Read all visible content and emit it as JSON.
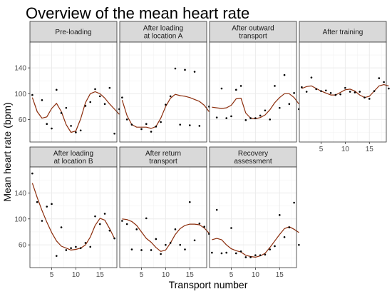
{
  "chart_data": {
    "type": "scatter",
    "title": "Overview of the mean heart rate",
    "xlabel": "Transport number",
    "ylabel": "Mean heart rate (bpm)",
    "xlim": [
      0.5,
      18.5
    ],
    "ylim": [
      25,
      180
    ],
    "x_ticks": [
      5,
      10,
      15
    ],
    "y_ticks": [
      60,
      100,
      140
    ],
    "grid": true,
    "colors": {
      "points": "#000000",
      "smooth_line": "#8b2c0b",
      "strip_bg": "#d9d9d9",
      "panel_border": "#333333",
      "grid": "#ebebeb"
    },
    "panels": [
      {
        "strip": [
          "Pre-loading"
        ],
        "points": [
          [
            1,
            98
          ],
          [
            3,
            90
          ],
          [
            4,
            53
          ],
          [
            5,
            46
          ],
          [
            6,
            106
          ],
          [
            7,
            70
          ],
          [
            8,
            78
          ],
          [
            9,
            50
          ],
          [
            10,
            40
          ],
          [
            11,
            43
          ],
          [
            12,
            81
          ],
          [
            13,
            87
          ],
          [
            14,
            107
          ],
          [
            15,
            96
          ],
          [
            16,
            84
          ],
          [
            17,
            109
          ],
          [
            18,
            38
          ],
          [
            19,
            76
          ]
        ],
        "smooth": [
          [
            1,
            94
          ],
          [
            2,
            72
          ],
          [
            3,
            62
          ],
          [
            4,
            64
          ],
          [
            5,
            77
          ],
          [
            6,
            85
          ],
          [
            7,
            72
          ],
          [
            8,
            52
          ],
          [
            9,
            40
          ],
          [
            10,
            42
          ],
          [
            11,
            61
          ],
          [
            12,
            86
          ],
          [
            13,
            100
          ],
          [
            14,
            103
          ],
          [
            15,
            100
          ],
          [
            16,
            93
          ],
          [
            17,
            84
          ],
          [
            18,
            76
          ],
          [
            19,
            68
          ]
        ]
      },
      {
        "strip": [
          "After loading",
          "at location A"
        ],
        "points": [
          [
            1,
            94
          ],
          [
            2,
            60
          ],
          [
            3,
            52
          ],
          [
            5,
            45
          ],
          [
            6,
            53
          ],
          [
            7,
            41
          ],
          [
            8,
            49
          ],
          [
            9,
            56
          ],
          [
            10,
            83
          ],
          [
            11,
            96
          ],
          [
            12,
            139
          ],
          [
            13,
            52
          ],
          [
            14,
            137
          ],
          [
            15,
            51
          ],
          [
            16,
            134
          ],
          [
            17,
            50
          ],
          [
            19,
            80
          ]
        ],
        "smooth": [
          [
            1,
            90
          ],
          [
            2,
            66
          ],
          [
            3,
            52
          ],
          [
            4,
            48
          ],
          [
            5,
            48
          ],
          [
            6,
            48
          ],
          [
            7,
            46
          ],
          [
            8,
            49
          ],
          [
            9,
            62
          ],
          [
            10,
            80
          ],
          [
            11,
            93
          ],
          [
            12,
            99
          ],
          [
            13,
            97
          ],
          [
            14,
            96
          ],
          [
            15,
            94
          ],
          [
            16,
            91
          ],
          [
            17,
            88
          ],
          [
            18,
            82
          ],
          [
            19,
            72
          ]
        ]
      },
      {
        "strip": [
          "After outward",
          "transport"
        ],
        "points": [
          [
            2,
            63
          ],
          [
            3,
            108
          ],
          [
            4,
            62
          ],
          [
            5,
            65
          ],
          [
            6,
            106
          ],
          [
            7,
            112
          ],
          [
            8,
            59
          ],
          [
            9,
            62
          ],
          [
            10,
            62
          ],
          [
            11,
            66
          ],
          [
            12,
            74
          ],
          [
            13,
            60
          ],
          [
            14,
            112
          ],
          [
            15,
            78
          ],
          [
            16,
            129
          ],
          [
            17,
            84
          ],
          [
            18,
            101
          ],
          [
            19,
            76
          ]
        ],
        "smooth": [
          [
            1,
            79
          ],
          [
            2,
            78
          ],
          [
            3,
            77
          ],
          [
            4,
            78
          ],
          [
            5,
            82
          ],
          [
            6,
            92
          ],
          [
            7,
            93
          ],
          [
            8,
            70
          ],
          [
            9,
            62
          ],
          [
            10,
            61
          ],
          [
            11,
            63
          ],
          [
            12,
            67
          ],
          [
            13,
            75
          ],
          [
            14,
            86
          ],
          [
            15,
            94
          ],
          [
            16,
            100
          ],
          [
            17,
            100
          ],
          [
            18,
            94
          ],
          [
            19,
            84
          ]
        ]
      },
      {
        "strip": [
          "After training"
        ],
        "points": [
          [
            1,
            110
          ],
          [
            2,
            103
          ],
          [
            3,
            125
          ],
          [
            4,
            107
          ],
          [
            5,
            104
          ],
          [
            6,
            105
          ],
          [
            7,
            101
          ],
          [
            8,
            98
          ],
          [
            9,
            99
          ],
          [
            10,
            109
          ],
          [
            11,
            103
          ],
          [
            12,
            102
          ],
          [
            13,
            103
          ],
          [
            14,
            94
          ],
          [
            15,
            92
          ],
          [
            16,
            104
          ],
          [
            17,
            124
          ],
          [
            18,
            118
          ],
          [
            19,
            108
          ]
        ],
        "smooth": [
          [
            1,
            108
          ],
          [
            2,
            111
          ],
          [
            3,
            112
          ],
          [
            4,
            108
          ],
          [
            5,
            104
          ],
          [
            6,
            101
          ],
          [
            7,
            98
          ],
          [
            8,
            98
          ],
          [
            9,
            102
          ],
          [
            10,
            106
          ],
          [
            11,
            107
          ],
          [
            12,
            104
          ],
          [
            13,
            98
          ],
          [
            14,
            94
          ],
          [
            15,
            96
          ],
          [
            16,
            104
          ],
          [
            17,
            112
          ],
          [
            18,
            114
          ],
          [
            19,
            112
          ]
        ]
      },
      {
        "strip": [
          "After loading",
          "at location B"
        ],
        "points": [
          [
            1,
            170
          ],
          [
            2,
            126
          ],
          [
            3,
            97
          ],
          [
            4,
            119
          ],
          [
            5,
            123
          ],
          [
            6,
            43
          ],
          [
            7,
            87
          ],
          [
            8,
            52
          ],
          [
            9,
            55
          ],
          [
            10,
            57
          ],
          [
            11,
            55
          ],
          [
            12,
            63
          ],
          [
            13,
            57
          ],
          [
            14,
            104
          ],
          [
            15,
            92
          ],
          [
            16,
            108
          ],
          [
            17,
            82
          ],
          [
            18,
            70
          ]
        ],
        "smooth": [
          [
            1,
            155
          ],
          [
            2,
            133
          ],
          [
            3,
            113
          ],
          [
            4,
            95
          ],
          [
            5,
            79
          ],
          [
            6,
            66
          ],
          [
            7,
            58
          ],
          [
            8,
            55
          ],
          [
            9,
            52
          ],
          [
            10,
            53
          ],
          [
            11,
            55
          ],
          [
            12,
            60
          ],
          [
            13,
            72
          ],
          [
            14,
            90
          ],
          [
            15,
            101
          ],
          [
            16,
            98
          ],
          [
            17,
            85
          ],
          [
            18,
            70
          ]
        ]
      },
      {
        "strip": [
          "After return",
          "transport"
        ],
        "points": [
          [
            1,
            97
          ],
          [
            2,
            92
          ],
          [
            3,
            53
          ],
          [
            4,
            84
          ],
          [
            5,
            52
          ],
          [
            6,
            101
          ],
          [
            7,
            52
          ],
          [
            8,
            69
          ],
          [
            9,
            46
          ],
          [
            10,
            60
          ],
          [
            11,
            63
          ],
          [
            12,
            84
          ],
          [
            13,
            60
          ],
          [
            14,
            53
          ],
          [
            15,
            126
          ],
          [
            16,
            67
          ],
          [
            17,
            93
          ],
          [
            18,
            88
          ],
          [
            19,
            77
          ]
        ],
        "smooth": [
          [
            1,
            100
          ],
          [
            2,
            99
          ],
          [
            3,
            96
          ],
          [
            4,
            90
          ],
          [
            5,
            80
          ],
          [
            6,
            70
          ],
          [
            7,
            64
          ],
          [
            8,
            56
          ],
          [
            9,
            50
          ],
          [
            10,
            52
          ],
          [
            11,
            63
          ],
          [
            12,
            76
          ],
          [
            13,
            85
          ],
          [
            14,
            90
          ],
          [
            15,
            92
          ],
          [
            16,
            92
          ],
          [
            17,
            91
          ],
          [
            18,
            86
          ],
          [
            19,
            78
          ]
        ]
      },
      {
        "strip": [
          "Recovery",
          "assessment"
        ],
        "points": [
          [
            1,
            48
          ],
          [
            2,
            114
          ],
          [
            3,
            47
          ],
          [
            4,
            48
          ],
          [
            5,
            86
          ],
          [
            6,
            47
          ],
          [
            7,
            50
          ],
          [
            8,
            41
          ],
          [
            9,
            41
          ],
          [
            10,
            44
          ],
          [
            11,
            44
          ],
          [
            12,
            45
          ],
          [
            13,
            53
          ],
          [
            14,
            58
          ],
          [
            15,
            106
          ],
          [
            16,
            72
          ],
          [
            17,
            87
          ],
          [
            18,
            125
          ],
          [
            19,
            60
          ]
        ],
        "smooth": [
          [
            1,
            68
          ],
          [
            2,
            70
          ],
          [
            3,
            68
          ],
          [
            4,
            60
          ],
          [
            5,
            54
          ],
          [
            6,
            51
          ],
          [
            7,
            49
          ],
          [
            8,
            44
          ],
          [
            9,
            42
          ],
          [
            10,
            41
          ],
          [
            11,
            43
          ],
          [
            12,
            47
          ],
          [
            13,
            56
          ],
          [
            14,
            66
          ],
          [
            15,
            76
          ],
          [
            16,
            85
          ],
          [
            17,
            88
          ],
          [
            18,
            84
          ],
          [
            19,
            79
          ]
        ]
      }
    ]
  }
}
